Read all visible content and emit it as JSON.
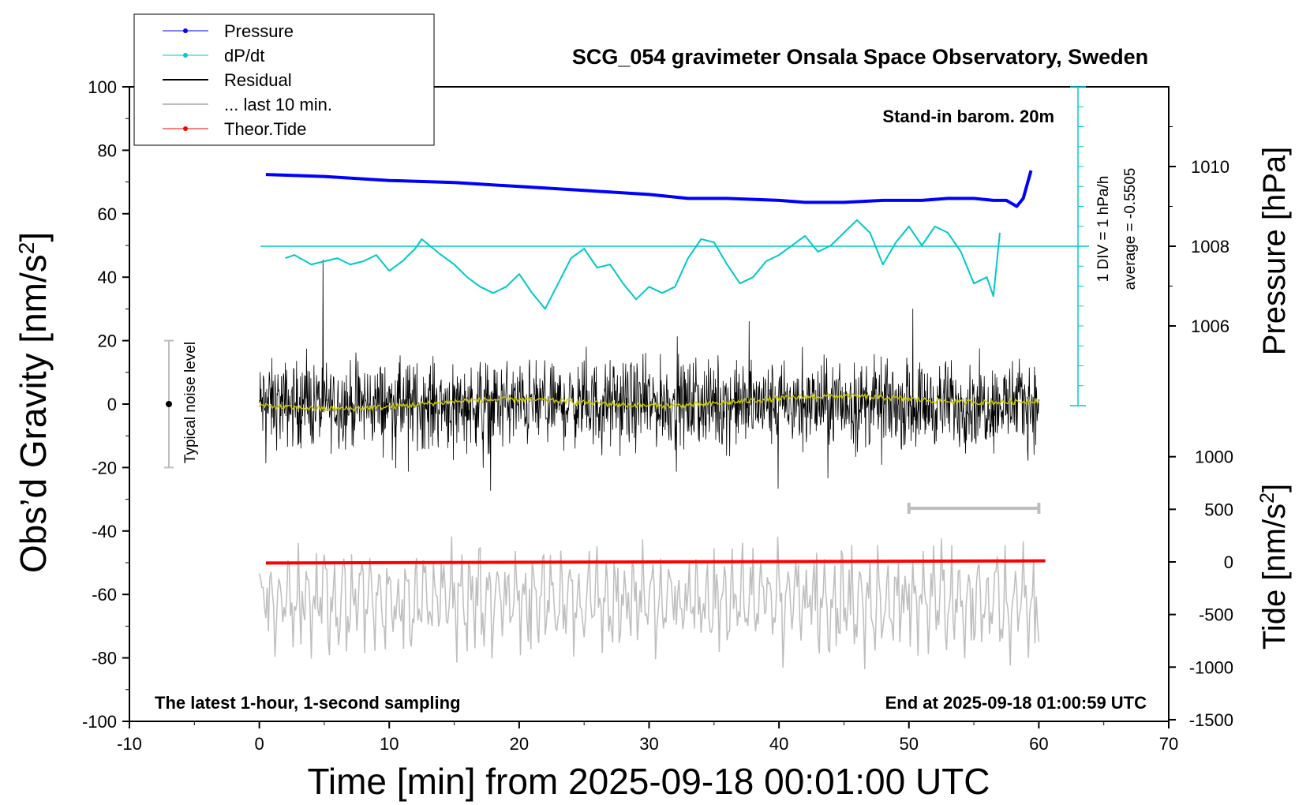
{
  "chart_data": {
    "type": "line",
    "title": "SCG_054 gravimeter Onsala Space Observatory, Sweden",
    "note_top_right": "Stand-in barom. 20m",
    "note_bottom_left": "The latest 1-hour, 1-second sampling",
    "note_bottom_right": "End at 2025-09-18 01:00:59 UTC",
    "xlabel": "Time [min] from 2025-09-18 00:01:00 UTC",
    "ylabel_left": "Obs’d Gravity [nm/s",
    "ylabel_left_sup": "2",
    "ylabel_left_end": "]",
    "ylabel_right_pressure": "Pressure [hPa]",
    "ylabel_right_tide": "Tide [nm/s",
    "ylabel_right_tide_sup": "2",
    "ylabel_right_tide_end": "]",
    "xlim": [
      -10,
      70
    ],
    "ylim": [
      -100,
      100
    ],
    "x_ticks": [
      "-10",
      "0",
      "10",
      "20",
      "30",
      "40",
      "50",
      "60",
      "70"
    ],
    "y_ticks": [
      "100",
      "80",
      "60",
      "40",
      "20",
      "0",
      "-20",
      "-40",
      "-60",
      "-80",
      "-100"
    ],
    "pressure_ticks": [
      "1010",
      "1008",
      "1006"
    ],
    "pressure_tick_values": [
      1010,
      1008,
      1006
    ],
    "tide_ticks": [
      "1000",
      "500",
      "0",
      "-500",
      "-1000",
      "-1500"
    ],
    "tide_tick_values": [
      1000,
      500,
      0,
      -500,
      -1000,
      -1500
    ],
    "dpdt_scale_label": "1 DIV = 1 hPa/h",
    "dpdt_average_label": "average = -0.5505",
    "noise_label": "Typical noise level",
    "noise_level": [
      -20,
      20
    ],
    "last10_bar": [
      50,
      60
    ],
    "legend": [
      "Pressure",
      "dP/dt",
      "Residual",
      "... last 10 min.",
      "Theor.Tide"
    ],
    "colors": {
      "pressure": "#0000ff",
      "dpdt": "#00c8c8",
      "residual": "#000000",
      "residual_smooth": "#c8c800",
      "last10": "#bebebe",
      "tide": "#ff0000"
    },
    "series": [
      {
        "name": "Pressure",
        "unit": "hPa",
        "x": [
          0.5,
          5,
          10,
          15,
          20,
          25,
          30,
          33,
          36,
          40,
          42,
          45,
          48,
          51,
          53,
          55,
          56.5,
          57.5,
          58.3,
          58.8,
          59.4
        ],
        "values": [
          1009.8,
          1009.75,
          1009.65,
          1009.6,
          1009.5,
          1009.4,
          1009.3,
          1009.2,
          1009.2,
          1009.15,
          1009.1,
          1009.1,
          1009.15,
          1009.15,
          1009.2,
          1009.2,
          1009.15,
          1009.15,
          1009.0,
          1009.2,
          1009.9
        ]
      },
      {
        "name": "dP/dt",
        "unit": "gravity-scale",
        "x": [
          2,
          2.7,
          4,
          5,
          6,
          7,
          8,
          9,
          10,
          11,
          12,
          12.5,
          14,
          15,
          16,
          17,
          18,
          19,
          20,
          21,
          22,
          23,
          24,
          25,
          26,
          27,
          28,
          29,
          30,
          31,
          32,
          33,
          34,
          35,
          36,
          37,
          38,
          39,
          40,
          41,
          42,
          43,
          44,
          45,
          46,
          47,
          48,
          49,
          50,
          51,
          52,
          53,
          54,
          55,
          56,
          56.5,
          57
        ],
        "values": [
          46,
          47,
          44,
          45,
          46,
          44,
          45,
          47,
          42,
          45,
          49,
          52,
          47,
          44,
          40,
          37,
          35,
          37,
          41,
          35,
          30,
          38,
          46,
          49,
          43,
          44,
          38,
          33,
          37,
          35,
          37,
          46,
          52,
          51,
          44,
          38,
          40,
          45,
          47,
          50,
          53,
          48,
          50,
          54,
          58,
          54,
          44,
          51,
          56,
          50,
          56,
          54,
          48,
          38,
          40,
          34,
          54
        ]
      },
      {
        "name": "Theor.Tide",
        "unit": "nm/s2",
        "x": [
          0.5,
          60.5
        ],
        "values": [
          -10,
          10
        ]
      }
    ]
  }
}
